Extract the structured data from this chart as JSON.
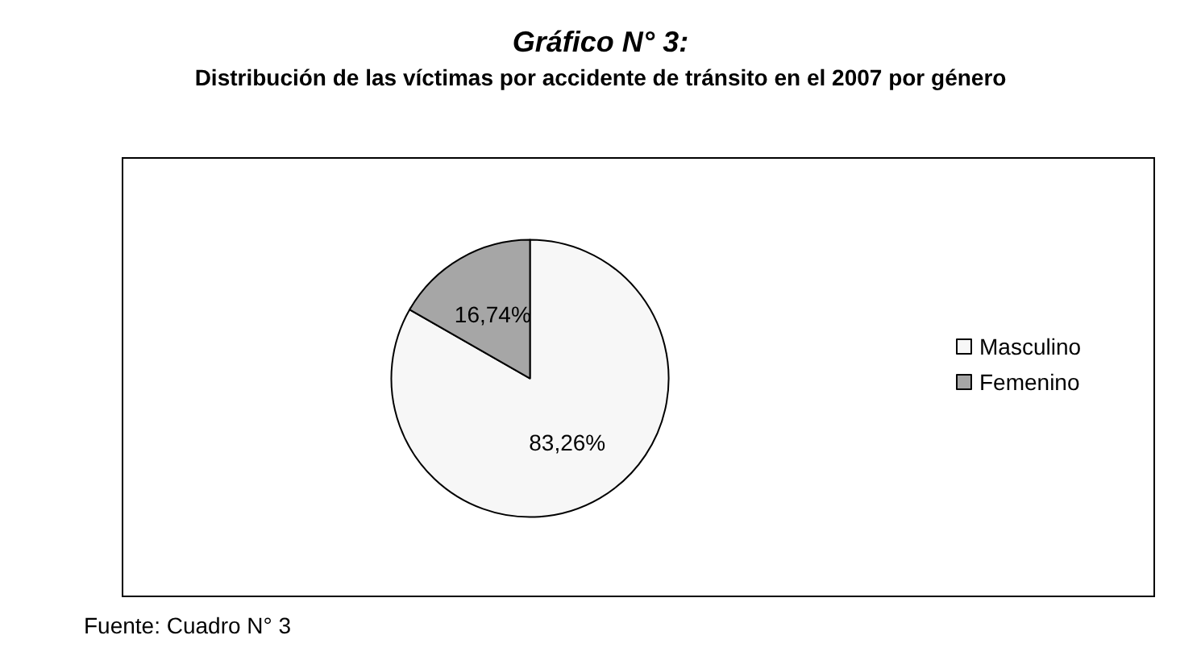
{
  "chart_data": {
    "type": "pie",
    "title": "Gráfico N° 3:",
    "subtitle": "Distribución de las víctimas por accidente de tránsito en el 2007 por género",
    "categories": [
      "Masculino",
      "Femenino"
    ],
    "values": [
      83.26,
      16.74
    ],
    "colors": [
      "#f7f7f7",
      "#a6a6a6"
    ],
    "value_labels": [
      "83,26%",
      "16,74%"
    ],
    "legend": "right",
    "annotations": [
      "Fuente: Cuadro N° 3"
    ]
  }
}
